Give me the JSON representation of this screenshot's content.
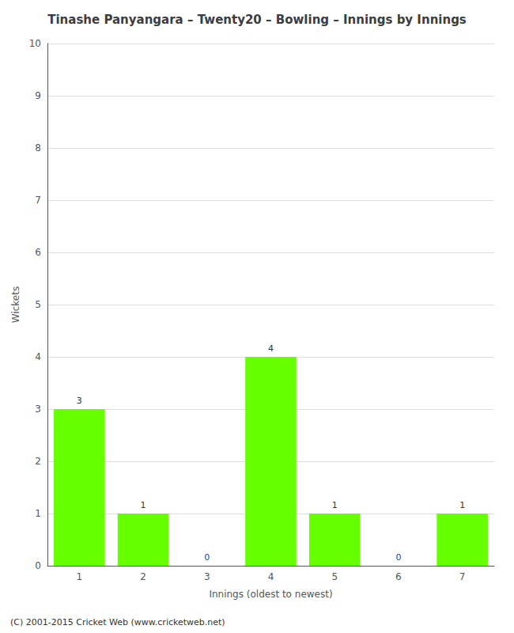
{
  "chart_data": {
    "type": "bar",
    "title": "Tinashe Panyangara – Twenty20 – Bowling – Innings by Innings",
    "xlabel": "Innings (oldest to newest)",
    "ylabel": "Wickets",
    "categories": [
      "1",
      "2",
      "3",
      "4",
      "5",
      "6",
      "7"
    ],
    "values": [
      3,
      1,
      0,
      4,
      1,
      0,
      1
    ],
    "color": "#66ff00",
    "ylim": [
      0,
      10
    ],
    "yticks": [
      0,
      1,
      2,
      3,
      4,
      5,
      6,
      7,
      8,
      9,
      10
    ],
    "grid": true,
    "data_labels": true,
    "annotations": [
      "(C) 2001-2015 Cricket Web (www.cricketweb.net)"
    ]
  }
}
